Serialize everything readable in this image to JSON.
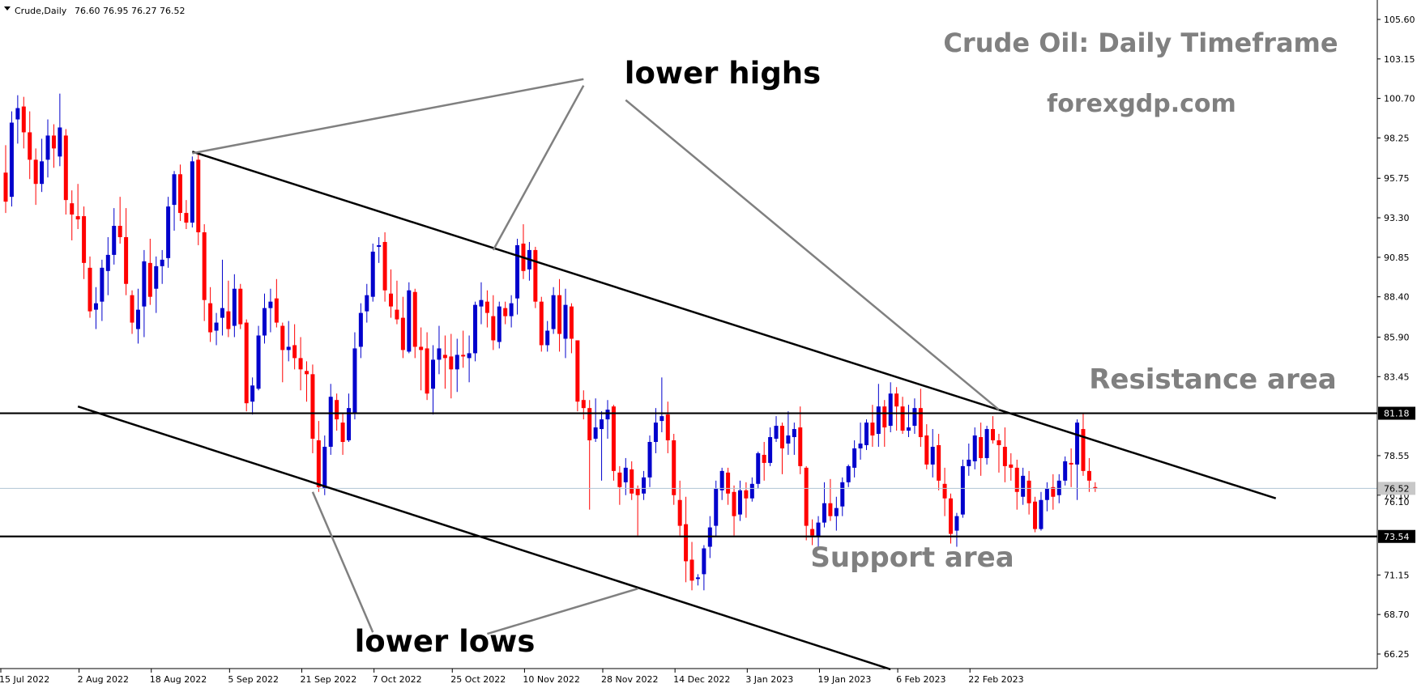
{
  "header": {
    "symbol_text": "Crude,Daily",
    "ohlc_text": "76.60 76.95 76.27 76.52"
  },
  "annotations": {
    "title": "Crude Oil: Daily Timeframe",
    "site": "forexgdp.com",
    "resistance_label": "Resistance area",
    "support_label": "Support area",
    "lower_highs_label": "lower highs",
    "lower_lows_label": "lower lows"
  },
  "chart_data": {
    "type": "candlestick",
    "symbol": "Crude",
    "timeframe": "Daily",
    "last_close": 76.52,
    "ylim": [
      65.2,
      106.8
    ],
    "y_ticks": [
      66.25,
      68.7,
      71.15,
      73.54,
      76.1,
      78.55,
      81.18,
      83.45,
      85.9,
      88.4,
      90.85,
      93.3,
      95.75,
      98.25,
      100.7,
      103.15,
      105.6
    ],
    "y_tick_labels": [
      "66.25",
      "68.70",
      "71.15",
      "73.54",
      "76.10",
      "78.55",
      "81.18",
      "83.45",
      "85.90",
      "88.40",
      "90.85",
      "93.30",
      "95.75",
      "98.25",
      "100.70",
      "103.15",
      "105.60"
    ],
    "x_tick_labels": [
      "15 Jul 2022",
      "2 Aug 2022",
      "18 Aug 2022",
      "5 Sep 2022",
      "21 Sep 2022",
      "7 Oct 2022",
      "25 Oct 2022",
      "10 Nov 2022",
      "28 Nov 2022",
      "14 Dec 2022",
      "3 Jan 2023",
      "19 Jan 2023",
      "6 Feb 2023",
      "22 Feb 2023"
    ],
    "x_tick_index": [
      0,
      13,
      25,
      38,
      50,
      62,
      75,
      87,
      100,
      112,
      124,
      136,
      149,
      161
    ],
    "horizontal_levels": [
      {
        "price": 81.18,
        "label": "81.18",
        "role": "resistance"
      },
      {
        "price": 73.54,
        "label": "73.54",
        "role": "support"
      }
    ],
    "current_price_label": "76.52",
    "trendlines": [
      {
        "name": "upper-channel",
        "from": {
          "i": 31,
          "p": 97.4
        },
        "to": {
          "i": 211,
          "p": 75.9
        }
      },
      {
        "name": "lower-channel",
        "from": {
          "i": 12,
          "p": 81.6
        },
        "to": {
          "i": 147,
          "p": 65.3
        }
      }
    ],
    "pointer_lines": [
      {
        "name": "lower-highs-left",
        "from": {
          "i": 96,
          "p": 101.9
        },
        "to": {
          "i": 31,
          "p": 97.3
        }
      },
      {
        "name": "lower-highs-mid",
        "from": {
          "i": 96,
          "p": 101.5
        },
        "to": {
          "i": 81,
          "p": 91.3
        }
      },
      {
        "name": "lower-highs-right",
        "from": {
          "i": 103,
          "p": 100.6
        },
        "to": {
          "i": 165,
          "p": 81.4
        }
      },
      {
        "name": "lower-lows-left",
        "from": {
          "i": 61,
          "p": 67.6
        },
        "to": {
          "i": 51,
          "p": 76.3
        }
      },
      {
        "name": "lower-lows-right",
        "from": {
          "i": 80,
          "p": 67.5
        },
        "to": {
          "i": 105,
          "p": 70.3
        }
      }
    ],
    "candles": [
      {
        "o": 96.1,
        "h": 97.8,
        "l": 93.6,
        "c": 94.3
      },
      {
        "o": 94.6,
        "h": 99.9,
        "l": 94.0,
        "c": 99.2
      },
      {
        "o": 99.4,
        "h": 100.9,
        "l": 97.9,
        "c": 100.1
      },
      {
        "o": 100.2,
        "h": 100.8,
        "l": 97.6,
        "c": 98.6
      },
      {
        "o": 98.6,
        "h": 99.9,
        "l": 95.7,
        "c": 96.9
      },
      {
        "o": 96.9,
        "h": 97.6,
        "l": 94.1,
        "c": 95.4
      },
      {
        "o": 95.4,
        "h": 98.2,
        "l": 94.9,
        "c": 96.8
      },
      {
        "o": 96.9,
        "h": 99.4,
        "l": 95.8,
        "c": 98.4
      },
      {
        "o": 98.4,
        "h": 99.1,
        "l": 96.4,
        "c": 97.6
      },
      {
        "o": 97.1,
        "h": 101.0,
        "l": 96.5,
        "c": 98.9
      },
      {
        "o": 98.4,
        "h": 98.8,
        "l": 93.5,
        "c": 94.4
      },
      {
        "o": 94.2,
        "h": 95.0,
        "l": 91.9,
        "c": 93.5
      },
      {
        "o": 93.4,
        "h": 95.4,
        "l": 92.6,
        "c": 93.2
      },
      {
        "o": 93.4,
        "h": 94.0,
        "l": 89.5,
        "c": 90.5
      },
      {
        "o": 90.2,
        "h": 90.9,
        "l": 87.1,
        "c": 87.5
      },
      {
        "o": 87.6,
        "h": 89.0,
        "l": 86.4,
        "c": 88.0
      },
      {
        "o": 88.1,
        "h": 90.7,
        "l": 86.9,
        "c": 90.2
      },
      {
        "o": 90.0,
        "h": 92.1,
        "l": 88.5,
        "c": 91.0
      },
      {
        "o": 91.0,
        "h": 93.9,
        "l": 90.4,
        "c": 92.8
      },
      {
        "o": 92.8,
        "h": 94.6,
        "l": 91.7,
        "c": 92.1
      },
      {
        "o": 92.1,
        "h": 93.9,
        "l": 88.5,
        "c": 89.2
      },
      {
        "o": 88.5,
        "h": 88.8,
        "l": 86.1,
        "c": 86.8
      },
      {
        "o": 86.4,
        "h": 88.9,
        "l": 85.5,
        "c": 87.6
      },
      {
        "o": 87.8,
        "h": 91.3,
        "l": 85.9,
        "c": 90.6
      },
      {
        "o": 90.5,
        "h": 92.0,
        "l": 87.9,
        "c": 88.4
      },
      {
        "o": 88.9,
        "h": 90.9,
        "l": 87.4,
        "c": 90.3
      },
      {
        "o": 90.3,
        "h": 91.3,
        "l": 89.2,
        "c": 90.7
      },
      {
        "o": 90.8,
        "h": 94.6,
        "l": 90.2,
        "c": 94.0
      },
      {
        "o": 94.1,
        "h": 96.2,
        "l": 92.5,
        "c": 96.0
      },
      {
        "o": 96.0,
        "h": 96.6,
        "l": 93.1,
        "c": 93.6
      },
      {
        "o": 93.6,
        "h": 94.4,
        "l": 92.6,
        "c": 93.0
      },
      {
        "o": 93.0,
        "h": 97.1,
        "l": 92.7,
        "c": 96.8
      },
      {
        "o": 96.9,
        "h": 97.4,
        "l": 91.6,
        "c": 92.4
      },
      {
        "o": 92.4,
        "h": 92.9,
        "l": 86.9,
        "c": 88.2
      },
      {
        "o": 88.0,
        "h": 89.0,
        "l": 85.6,
        "c": 86.2
      },
      {
        "o": 86.3,
        "h": 87.4,
        "l": 85.4,
        "c": 86.8
      },
      {
        "o": 87.1,
        "h": 90.7,
        "l": 86.0,
        "c": 87.7
      },
      {
        "o": 87.5,
        "h": 89.4,
        "l": 85.9,
        "c": 86.4
      },
      {
        "o": 86.6,
        "h": 89.8,
        "l": 85.9,
        "c": 88.9
      },
      {
        "o": 88.9,
        "h": 89.2,
        "l": 86.4,
        "c": 86.7
      },
      {
        "o": 86.8,
        "h": 87.0,
        "l": 81.3,
        "c": 81.8
      },
      {
        "o": 81.9,
        "h": 83.4,
        "l": 81.1,
        "c": 82.9
      },
      {
        "o": 82.7,
        "h": 86.6,
        "l": 82.6,
        "c": 86.0
      },
      {
        "o": 86.0,
        "h": 88.6,
        "l": 85.5,
        "c": 87.7
      },
      {
        "o": 87.7,
        "h": 88.9,
        "l": 86.2,
        "c": 88.1
      },
      {
        "o": 88.3,
        "h": 89.5,
        "l": 86.5,
        "c": 86.8
      },
      {
        "o": 86.6,
        "h": 86.8,
        "l": 83.1,
        "c": 85.1
      },
      {
        "o": 85.1,
        "h": 86.9,
        "l": 84.4,
        "c": 85.3
      },
      {
        "o": 85.4,
        "h": 86.7,
        "l": 83.9,
        "c": 84.6
      },
      {
        "o": 84.6,
        "h": 85.9,
        "l": 82.6,
        "c": 83.9
      },
      {
        "o": 83.8,
        "h": 84.4,
        "l": 81.9,
        "c": 83.6
      },
      {
        "o": 83.6,
        "h": 84.2,
        "l": 78.7,
        "c": 79.6
      },
      {
        "o": 79.5,
        "h": 80.7,
        "l": 76.3,
        "c": 76.6
      },
      {
        "o": 76.5,
        "h": 79.8,
        "l": 76.1,
        "c": 79.1
      },
      {
        "o": 79.1,
        "h": 83.0,
        "l": 78.6,
        "c": 82.2
      },
      {
        "o": 82.0,
        "h": 82.4,
        "l": 80.1,
        "c": 80.8
      },
      {
        "o": 80.6,
        "h": 81.2,
        "l": 78.6,
        "c": 79.4
      },
      {
        "o": 79.5,
        "h": 82.4,
        "l": 79.4,
        "c": 81.5
      },
      {
        "o": 81.2,
        "h": 86.2,
        "l": 80.8,
        "c": 85.2
      },
      {
        "o": 85.3,
        "h": 88.0,
        "l": 84.6,
        "c": 87.4
      },
      {
        "o": 87.5,
        "h": 89.2,
        "l": 86.8,
        "c": 88.5
      },
      {
        "o": 88.4,
        "h": 91.7,
        "l": 88.1,
        "c": 91.2
      },
      {
        "o": 91.5,
        "h": 92.1,
        "l": 90.5,
        "c": 91.6
      },
      {
        "o": 91.8,
        "h": 92.4,
        "l": 88.1,
        "c": 88.8
      },
      {
        "o": 88.6,
        "h": 90.1,
        "l": 87.1,
        "c": 87.8
      },
      {
        "o": 87.6,
        "h": 89.4,
        "l": 86.7,
        "c": 87.0
      },
      {
        "o": 87.1,
        "h": 88.4,
        "l": 84.6,
        "c": 85.1
      },
      {
        "o": 85.0,
        "h": 89.3,
        "l": 84.9,
        "c": 88.8
      },
      {
        "o": 88.7,
        "h": 88.9,
        "l": 84.6,
        "c": 85.3
      },
      {
        "o": 85.3,
        "h": 86.5,
        "l": 82.6,
        "c": 85.1
      },
      {
        "o": 85.2,
        "h": 86.2,
        "l": 82.0,
        "c": 82.4
      },
      {
        "o": 82.7,
        "h": 85.4,
        "l": 81.1,
        "c": 84.5
      },
      {
        "o": 84.5,
        "h": 86.6,
        "l": 83.6,
        "c": 85.2
      },
      {
        "o": 84.8,
        "h": 86.0,
        "l": 82.7,
        "c": 84.6
      },
      {
        "o": 84.7,
        "h": 86.1,
        "l": 82.1,
        "c": 83.9
      },
      {
        "o": 83.9,
        "h": 85.8,
        "l": 82.5,
        "c": 84.8
      },
      {
        "o": 84.8,
        "h": 86.3,
        "l": 84.0,
        "c": 84.7
      },
      {
        "o": 84.6,
        "h": 86.0,
        "l": 83.1,
        "c": 84.9
      },
      {
        "o": 84.9,
        "h": 88.1,
        "l": 84.4,
        "c": 87.9
      },
      {
        "o": 87.8,
        "h": 89.3,
        "l": 86.7,
        "c": 88.2
      },
      {
        "o": 88.1,
        "h": 88.8,
        "l": 86.5,
        "c": 87.4
      },
      {
        "o": 87.2,
        "h": 88.5,
        "l": 85.1,
        "c": 85.7
      },
      {
        "o": 85.6,
        "h": 88.1,
        "l": 85.2,
        "c": 87.8
      },
      {
        "o": 87.7,
        "h": 88.1,
        "l": 86.7,
        "c": 87.2
      },
      {
        "o": 87.2,
        "h": 88.5,
        "l": 86.5,
        "c": 88.0
      },
      {
        "o": 88.3,
        "h": 92.0,
        "l": 87.3,
        "c": 91.6
      },
      {
        "o": 91.7,
        "h": 92.9,
        "l": 89.5,
        "c": 90.0
      },
      {
        "o": 90.1,
        "h": 91.8,
        "l": 89.4,
        "c": 91.3
      },
      {
        "o": 91.3,
        "h": 91.5,
        "l": 87.7,
        "c": 88.1
      },
      {
        "o": 88.1,
        "h": 88.4,
        "l": 85.0,
        "c": 85.4
      },
      {
        "o": 85.4,
        "h": 86.9,
        "l": 85.0,
        "c": 86.3
      },
      {
        "o": 86.4,
        "h": 89.0,
        "l": 86.1,
        "c": 88.5
      },
      {
        "o": 88.5,
        "h": 89.5,
        "l": 85.0,
        "c": 86.1
      },
      {
        "o": 85.8,
        "h": 88.9,
        "l": 84.6,
        "c": 87.9
      },
      {
        "o": 87.8,
        "h": 88.0,
        "l": 84.9,
        "c": 85.8
      },
      {
        "o": 85.7,
        "h": 85.7,
        "l": 81.3,
        "c": 81.9
      },
      {
        "o": 82.0,
        "h": 82.6,
        "l": 80.8,
        "c": 81.5
      },
      {
        "o": 81.5,
        "h": 82.0,
        "l": 75.2,
        "c": 79.5
      },
      {
        "o": 79.6,
        "h": 82.1,
        "l": 79.4,
        "c": 80.3
      },
      {
        "o": 80.2,
        "h": 81.3,
        "l": 77.0,
        "c": 80.8
      },
      {
        "o": 80.8,
        "h": 82.0,
        "l": 79.6,
        "c": 81.4
      },
      {
        "o": 81.6,
        "h": 81.7,
        "l": 77.0,
        "c": 77.6
      },
      {
        "o": 77.5,
        "h": 77.9,
        "l": 75.5,
        "c": 76.6
      },
      {
        "o": 76.9,
        "h": 78.4,
        "l": 76.1,
        "c": 77.8
      },
      {
        "o": 77.7,
        "h": 78.2,
        "l": 75.8,
        "c": 76.2
      },
      {
        "o": 76.5,
        "h": 76.7,
        "l": 73.6,
        "c": 76.1
      },
      {
        "o": 76.2,
        "h": 77.6,
        "l": 75.8,
        "c": 77.2
      },
      {
        "o": 77.2,
        "h": 79.8,
        "l": 76.6,
        "c": 79.4
      },
      {
        "o": 79.4,
        "h": 81.5,
        "l": 78.7,
        "c": 80.6
      },
      {
        "o": 80.7,
        "h": 83.4,
        "l": 80.0,
        "c": 81.0
      },
      {
        "o": 81.1,
        "h": 81.9,
        "l": 78.7,
        "c": 79.5
      },
      {
        "o": 79.5,
        "h": 79.9,
        "l": 75.5,
        "c": 76.1
      },
      {
        "o": 75.8,
        "h": 77.0,
        "l": 73.6,
        "c": 74.2
      },
      {
        "o": 74.3,
        "h": 76.0,
        "l": 70.7,
        "c": 72.0
      },
      {
        "o": 72.1,
        "h": 73.2,
        "l": 70.2,
        "c": 70.8
      },
      {
        "o": 70.9,
        "h": 71.2,
        "l": 70.5,
        "c": 71.0
      },
      {
        "o": 71.2,
        "h": 73.0,
        "l": 70.2,
        "c": 72.8
      },
      {
        "o": 72.9,
        "h": 74.8,
        "l": 72.2,
        "c": 74.1
      },
      {
        "o": 74.2,
        "h": 77.0,
        "l": 73.5,
        "c": 76.5
      },
      {
        "o": 76.4,
        "h": 77.8,
        "l": 75.8,
        "c": 77.6
      },
      {
        "o": 77.5,
        "h": 77.8,
        "l": 75.5,
        "c": 76.2
      },
      {
        "o": 76.3,
        "h": 76.7,
        "l": 73.6,
        "c": 74.8
      },
      {
        "o": 74.9,
        "h": 77.0,
        "l": 74.5,
        "c": 76.4
      },
      {
        "o": 76.4,
        "h": 76.9,
        "l": 74.7,
        "c": 75.9
      },
      {
        "o": 75.9,
        "h": 77.2,
        "l": 75.7,
        "c": 76.8
      },
      {
        "o": 76.8,
        "h": 78.8,
        "l": 76.5,
        "c": 78.7
      },
      {
        "o": 78.6,
        "h": 79.4,
        "l": 77.0,
        "c": 78.1
      },
      {
        "o": 78.1,
        "h": 80.3,
        "l": 77.9,
        "c": 79.7
      },
      {
        "o": 79.6,
        "h": 81.0,
        "l": 79.4,
        "c": 80.4
      },
      {
        "o": 80.4,
        "h": 80.6,
        "l": 77.4,
        "c": 79.0
      },
      {
        "o": 79.3,
        "h": 81.3,
        "l": 78.6,
        "c": 79.8
      },
      {
        "o": 79.7,
        "h": 80.6,
        "l": 78.6,
        "c": 80.2
      },
      {
        "o": 80.3,
        "h": 81.6,
        "l": 77.4,
        "c": 77.9
      },
      {
        "o": 77.8,
        "h": 77.9,
        "l": 73.3,
        "c": 74.2
      },
      {
        "o": 74.0,
        "h": 74.6,
        "l": 73.0,
        "c": 73.6
      },
      {
        "o": 73.5,
        "h": 74.8,
        "l": 72.9,
        "c": 74.4
      },
      {
        "o": 74.4,
        "h": 76.9,
        "l": 74.1,
        "c": 75.6
      },
      {
        "o": 75.6,
        "h": 77.1,
        "l": 74.5,
        "c": 74.8
      },
      {
        "o": 74.8,
        "h": 76.0,
        "l": 73.9,
        "c": 75.3
      },
      {
        "o": 75.4,
        "h": 77.2,
        "l": 74.8,
        "c": 76.9
      },
      {
        "o": 76.9,
        "h": 78.0,
        "l": 76.6,
        "c": 77.9
      },
      {
        "o": 77.8,
        "h": 79.5,
        "l": 77.2,
        "c": 79.0
      },
      {
        "o": 79.0,
        "h": 80.6,
        "l": 78.3,
        "c": 79.3
      },
      {
        "o": 79.2,
        "h": 80.8,
        "l": 78.9,
        "c": 80.6
      },
      {
        "o": 80.6,
        "h": 81.7,
        "l": 79.1,
        "c": 79.8
      },
      {
        "o": 79.9,
        "h": 83.0,
        "l": 79.1,
        "c": 81.6
      },
      {
        "o": 81.6,
        "h": 82.0,
        "l": 79.1,
        "c": 80.3
      },
      {
        "o": 80.4,
        "h": 83.1,
        "l": 80.0,
        "c": 82.4
      },
      {
        "o": 82.4,
        "h": 82.8,
        "l": 80.1,
        "c": 81.6
      },
      {
        "o": 81.6,
        "h": 82.2,
        "l": 79.9,
        "c": 80.1
      },
      {
        "o": 80.1,
        "h": 81.7,
        "l": 79.7,
        "c": 80.3
      },
      {
        "o": 80.4,
        "h": 82.1,
        "l": 79.9,
        "c": 81.5
      },
      {
        "o": 81.5,
        "h": 82.7,
        "l": 79.1,
        "c": 79.7
      },
      {
        "o": 79.8,
        "h": 80.5,
        "l": 77.7,
        "c": 78.0
      },
      {
        "o": 78.0,
        "h": 80.2,
        "l": 77.2,
        "c": 79.1
      },
      {
        "o": 79.2,
        "h": 79.9,
        "l": 76.4,
        "c": 77.0
      },
      {
        "o": 76.8,
        "h": 77.8,
        "l": 74.8,
        "c": 75.9
      },
      {
        "o": 75.9,
        "h": 76.2,
        "l": 73.1,
        "c": 73.7
      },
      {
        "o": 73.9,
        "h": 75.0,
        "l": 72.9,
        "c": 74.8
      },
      {
        "o": 74.9,
        "h": 78.3,
        "l": 74.7,
        "c": 77.9
      },
      {
        "o": 77.9,
        "h": 79.3,
        "l": 77.3,
        "c": 78.3
      },
      {
        "o": 78.2,
        "h": 80.3,
        "l": 77.7,
        "c": 79.8
      },
      {
        "o": 79.7,
        "h": 80.6,
        "l": 77.3,
        "c": 78.4
      },
      {
        "o": 78.4,
        "h": 80.4,
        "l": 78.0,
        "c": 80.2
      },
      {
        "o": 80.2,
        "h": 81.0,
        "l": 79.3,
        "c": 79.5
      },
      {
        "o": 79.5,
        "h": 79.9,
        "l": 77.5,
        "c": 79.2
      },
      {
        "o": 79.1,
        "h": 80.3,
        "l": 76.9,
        "c": 77.9
      },
      {
        "o": 78.0,
        "h": 78.7,
        "l": 77.0,
        "c": 77.8
      },
      {
        "o": 77.8,
        "h": 78.3,
        "l": 75.2,
        "c": 76.3
      },
      {
        "o": 76.0,
        "h": 77.8,
        "l": 75.5,
        "c": 77.3
      },
      {
        "o": 77.0,
        "h": 77.6,
        "l": 74.9,
        "c": 75.6
      },
      {
        "o": 75.7,
        "h": 76.0,
        "l": 73.8,
        "c": 74.0
      },
      {
        "o": 74.0,
        "h": 76.3,
        "l": 73.9,
        "c": 75.8
      },
      {
        "o": 75.8,
        "h": 76.9,
        "l": 75.1,
        "c": 76.5
      },
      {
        "o": 76.6,
        "h": 77.4,
        "l": 75.2,
        "c": 76.0
      },
      {
        "o": 76.1,
        "h": 77.4,
        "l": 75.6,
        "c": 77.0
      },
      {
        "o": 77.0,
        "h": 78.5,
        "l": 76.7,
        "c": 78.2
      },
      {
        "o": 78.1,
        "h": 79.0,
        "l": 76.6,
        "c": 78.0
      },
      {
        "o": 78.0,
        "h": 80.8,
        "l": 75.8,
        "c": 80.6
      },
      {
        "o": 80.2,
        "h": 81.2,
        "l": 77.3,
        "c": 77.6
      },
      {
        "o": 77.6,
        "h": 78.4,
        "l": 76.3,
        "c": 77.0
      },
      {
        "o": 76.6,
        "h": 76.9,
        "l": 76.3,
        "c": 76.5
      }
    ]
  }
}
